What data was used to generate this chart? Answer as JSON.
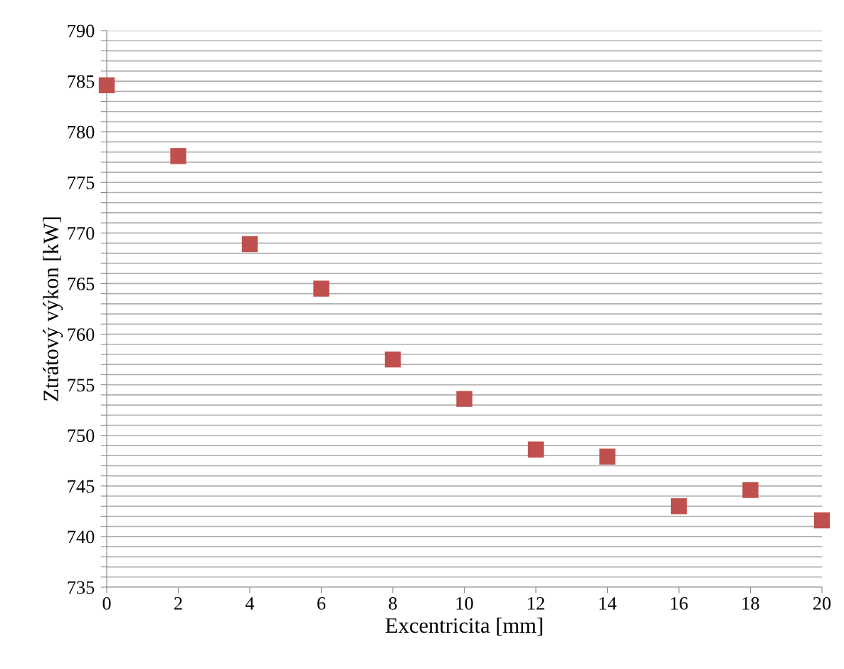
{
  "chart_data": {
    "type": "scatter",
    "xlabel": "Excentricita [mm]",
    "ylabel": "Ztrátový výkon [kW]",
    "x": [
      0,
      2,
      4,
      6,
      8,
      10,
      12,
      14,
      16,
      18,
      20
    ],
    "series": [
      {
        "color": "#c0504d",
        "values": [
          784.6,
          777.6,
          768.9,
          764.5,
          757.5,
          753.6,
          748.6,
          747.9,
          743.0,
          744.6,
          741.6
        ]
      }
    ],
    "marker": "square",
    "grid": "y",
    "xlim": [
      0,
      20
    ],
    "xticks": [
      0,
      2,
      4,
      6,
      8,
      10,
      12,
      14,
      16,
      18,
      20
    ],
    "ylim": [
      735,
      790
    ],
    "yticks": [
      735,
      {
        "value": 736,
        "label": null
      },
      {
        "value": 737,
        "label": null
      },
      {
        "value": 738,
        "label": null
      },
      {
        "value": 739,
        "label": null
      },
      740,
      {
        "value": 741,
        "label": null
      },
      {
        "value": 742,
        "label": null
      },
      {
        "value": 743,
        "label": null
      },
      {
        "value": 744,
        "label": null
      },
      745,
      {
        "value": 746,
        "label": null
      },
      {
        "value": 747,
        "label": null
      },
      {
        "value": 748,
        "label": null
      },
      {
        "value": 749,
        "label": null
      },
      750,
      {
        "value": 751,
        "label": null
      },
      {
        "value": 752,
        "label": null
      },
      {
        "value": 753,
        "label": null
      },
      {
        "value": 754,
        "label": null
      },
      755,
      {
        "value": 756,
        "label": null
      },
      {
        "value": 757,
        "label": null
      },
      {
        "value": 758,
        "label": null
      },
      {
        "value": 759,
        "label": null
      },
      760,
      {
        "value": 761,
        "label": null
      },
      {
        "value": 762,
        "label": null
      },
      {
        "value": 763,
        "label": null
      },
      {
        "value": 764,
        "label": null
      },
      765,
      {
        "value": 766,
        "label": null
      },
      {
        "value": 767,
        "label": null
      },
      {
        "value": 768,
        "label": null
      },
      {
        "value": 769,
        "label": null
      },
      770,
      {
        "value": 771,
        "label": null
      },
      {
        "value": 772,
        "label": null
      },
      {
        "value": 773,
        "label": null
      },
      {
        "value": 774,
        "label": null
      },
      775,
      {
        "value": 776,
        "label": null
      },
      {
        "value": 777,
        "label": null
      },
      {
        "value": 778,
        "label": null
      },
      {
        "value": 779,
        "label": null
      },
      780,
      {
        "value": 781,
        "label": null
      },
      {
        "value": 782,
        "label": null
      },
      {
        "value": 783,
        "label": null
      },
      {
        "value": 784,
        "label": null
      },
      785,
      {
        "value": 786,
        "label": null
      },
      {
        "value": 787,
        "label": null
      },
      {
        "value": 788,
        "label": null
      },
      {
        "value": 789,
        "label": null
      },
      790
    ]
  }
}
